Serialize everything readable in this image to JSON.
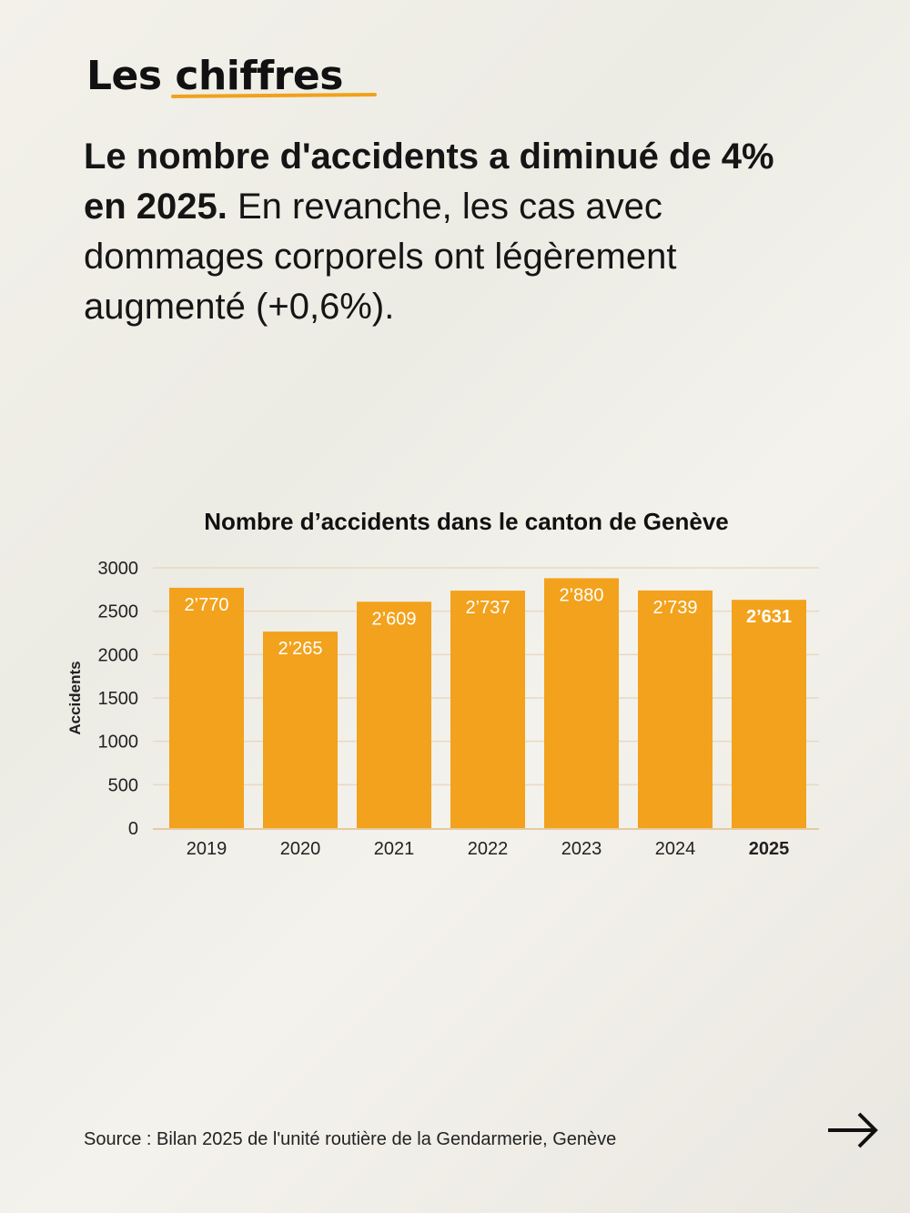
{
  "header": {
    "kicker": "Les chiffres",
    "lead_bold": "Le nombre d'accidents a diminué de 4% en 2025.",
    "lead_rest": " En revanche, les cas avec dommages corporels ont légèrement augmenté (+0,6%)."
  },
  "chart_data": {
    "type": "bar",
    "title": "Nombre d’accidents dans le canton de Genève",
    "xlabel": "",
    "ylabel": "Accidents",
    "ylim": [
      0,
      3000
    ],
    "yticks": [
      0,
      500,
      1000,
      1500,
      2000,
      2500,
      3000
    ],
    "categories": [
      "2019",
      "2020",
      "2021",
      "2022",
      "2023",
      "2024",
      "2025"
    ],
    "values": [
      2770,
      2265,
      2609,
      2737,
      2880,
      2739,
      2631
    ],
    "labels": [
      "2’770",
      "2’265",
      "2’609",
      "2’737",
      "2’880",
      "2’739",
      "2’631"
    ],
    "highlight": "2025",
    "bar_color": "#f2a21c",
    "grid": true
  },
  "footer": {
    "source": "Source : Bilan 2025 de l'unité routière de la Gendarmerie, Genève",
    "next_icon": "arrow-right-icon"
  }
}
